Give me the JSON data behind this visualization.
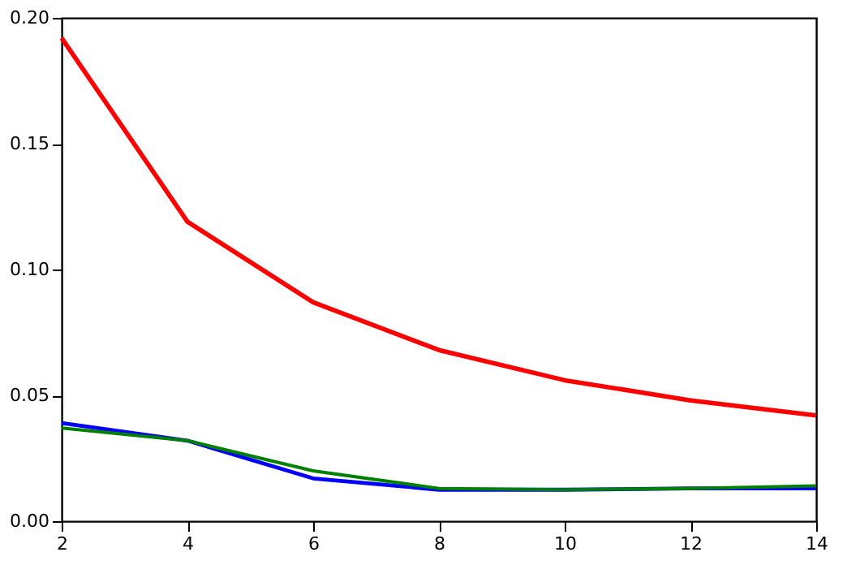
{
  "chart_data": {
    "type": "line",
    "x": [
      2,
      4,
      6,
      8,
      10,
      12,
      14
    ],
    "series": [
      {
        "color": "#ff0000",
        "values": [
          0.192,
          0.119,
          0.087,
          0.068,
          0.056,
          0.048,
          0.042
        ]
      },
      {
        "color": "#0000ff",
        "values": [
          0.039,
          0.032,
          0.017,
          0.0125,
          0.0125,
          0.013,
          0.013
        ]
      },
      {
        "color": "#008000",
        "values": [
          0.037,
          0.032,
          0.02,
          0.013,
          0.0125,
          0.013,
          0.014
        ]
      }
    ],
    "xlim": [
      2,
      14
    ],
    "xticks": [
      2,
      4,
      6,
      8,
      10,
      12,
      14
    ],
    "ylim": [
      0,
      0.2
    ],
    "yticks": [
      {
        "value": 0,
        "label": "0.00"
      },
      {
        "value": 0.05,
        "label": "0.05"
      },
      {
        "value": 0.1,
        "label": "0.10"
      },
      {
        "value": 0.15,
        "label": "0.15"
      },
      {
        "value": 0.2,
        "label": "0.20"
      }
    ],
    "grid": false,
    "legend": false,
    "marker": "none",
    "line_style": "solid"
  }
}
